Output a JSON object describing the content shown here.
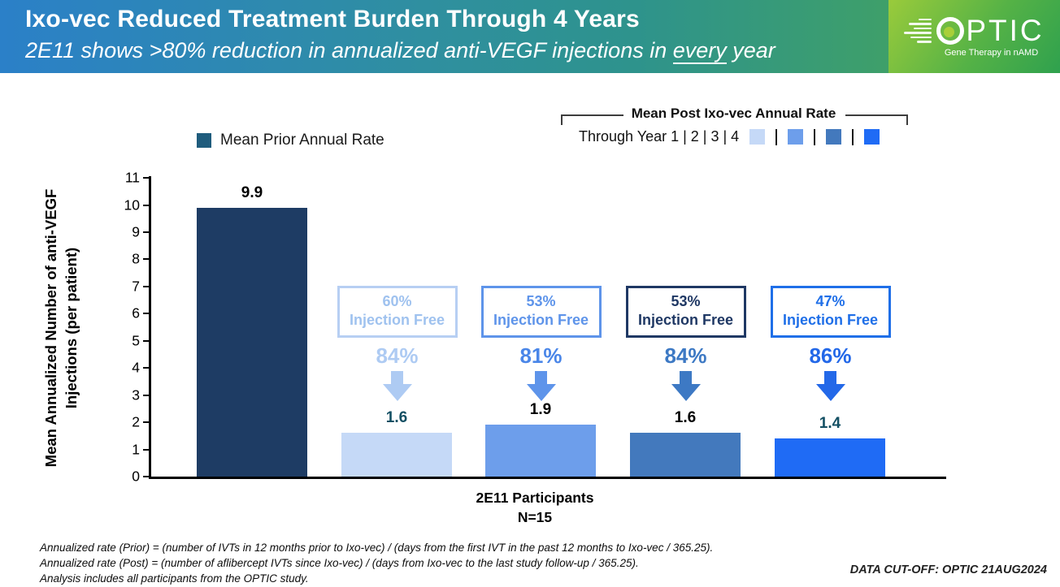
{
  "header": {
    "title": "Ixo-vec Reduced Treatment Burden Through 4 Years",
    "subtitle_pre": "2E11 shows >80% reduction in annualized anti-VEGF injections in ",
    "subtitle_underline": "every",
    "subtitle_post": " year",
    "gradient_left_color": "#2B80C8",
    "gradient_right_color": "#52AC55"
  },
  "logo": {
    "brand": "OPTIC",
    "brand_rest": "PTIC",
    "tagline": "Gene Therapy in nAMD",
    "brand_green": "#55B246"
  },
  "legend_prior": {
    "label": "Mean Prior Annual Rate",
    "swatch_color": "#1F5C7D"
  },
  "legend_post": {
    "title": "Mean Post Ixo-vec Annual Rate",
    "through_label": "Through Year 1 | 2 | 3 | 4",
    "swatch_colors": [
      "#C5D9F7",
      "#6D9EEB",
      "#4379BD",
      "#1F6BF5"
    ]
  },
  "chart_data": {
    "type": "bar",
    "title": "Ixo-vec Reduced Treatment Burden Through 4 Years",
    "ylabel_line1": "Mean Annualized Number of anti-VEGF",
    "ylabel_line2": "Injections (per patient)",
    "xlabel_line1": "2E11 Participants",
    "xlabel_line2": "N=15",
    "ylim": [
      0,
      11
    ],
    "ytick_step": 1,
    "grid": false,
    "categories": [
      "Mean Prior Annual Rate",
      "Post Ixo-vec Through Year 1",
      "Post Ixo-vec Through Year 2",
      "Post Ixo-vec Through Year 3",
      "Post Ixo-vec Through Year 4"
    ],
    "bars": [
      {
        "category": "Mean Prior Annual Rate",
        "value": 9.9,
        "value_label": "9.9",
        "color": "#1E3C64",
        "value_label_color": "#000000"
      },
      {
        "category": "Post Ixo-vec Through Year 1",
        "value": 1.6,
        "value_label": "1.6",
        "color": "#C5D9F7",
        "value_label_color": "#134F63"
      },
      {
        "category": "Post Ixo-vec Through Year 2",
        "value": 1.9,
        "value_label": "1.9",
        "color": "#6D9EEB",
        "value_label_color": "#000000"
      },
      {
        "category": "Post Ixo-vec Through Year 3",
        "value": 1.6,
        "value_label": "1.6",
        "color": "#4379BD",
        "value_label_color": "#000000"
      },
      {
        "category": "Post Ixo-vec Through Year 4",
        "value": 1.4,
        "value_label": "1.4",
        "color": "#1F6BF5",
        "value_label_color": "#134F63"
      }
    ],
    "annotations": [
      {
        "injection_free_pct": "60%",
        "injection_free_label": "Injection Free",
        "reduction_pct": "84%",
        "box_border_color": "#B7CFF3",
        "box_text_color": "#9FC2EF",
        "pct_color": "#AECBF3",
        "arrow_color": "#AECBF3"
      },
      {
        "injection_free_pct": "53%",
        "injection_free_label": "Injection Free",
        "reduction_pct": "81%",
        "box_border_color": "#5E94EA",
        "box_text_color": "#5E94EA",
        "pct_color": "#4A86E8",
        "arrow_color": "#5E94EA"
      },
      {
        "injection_free_pct": "53%",
        "injection_free_label": "Injection Free",
        "reduction_pct": "84%",
        "box_border_color": "#1F3864",
        "box_text_color": "#1F3864",
        "pct_color": "#3D79C4",
        "arrow_color": "#3D79C4"
      },
      {
        "injection_free_pct": "47%",
        "injection_free_label": "Injection Free",
        "reduction_pct": "86%",
        "box_border_color": "#1F6FE8",
        "box_text_color": "#1F6FE8",
        "pct_color": "#2368E8",
        "arrow_color": "#2368E8"
      }
    ]
  },
  "footnotes": {
    "line1": "Annualized rate (Prior) = (number of IVTs in 12 months prior to Ixo-vec) / (days from the first IVT in the past 12 months to Ixo-vec / 365.25).",
    "line2": "Annualized rate (Post) = (number of aflibercept IVTs since Ixo-vec) / (days from Ixo-vec to the last study follow-up / 365.25).",
    "line3": "Analysis includes all participants from the OPTIC study."
  },
  "data_cutoff": "DATA CUT-OFF: OPTIC 21AUG2024"
}
